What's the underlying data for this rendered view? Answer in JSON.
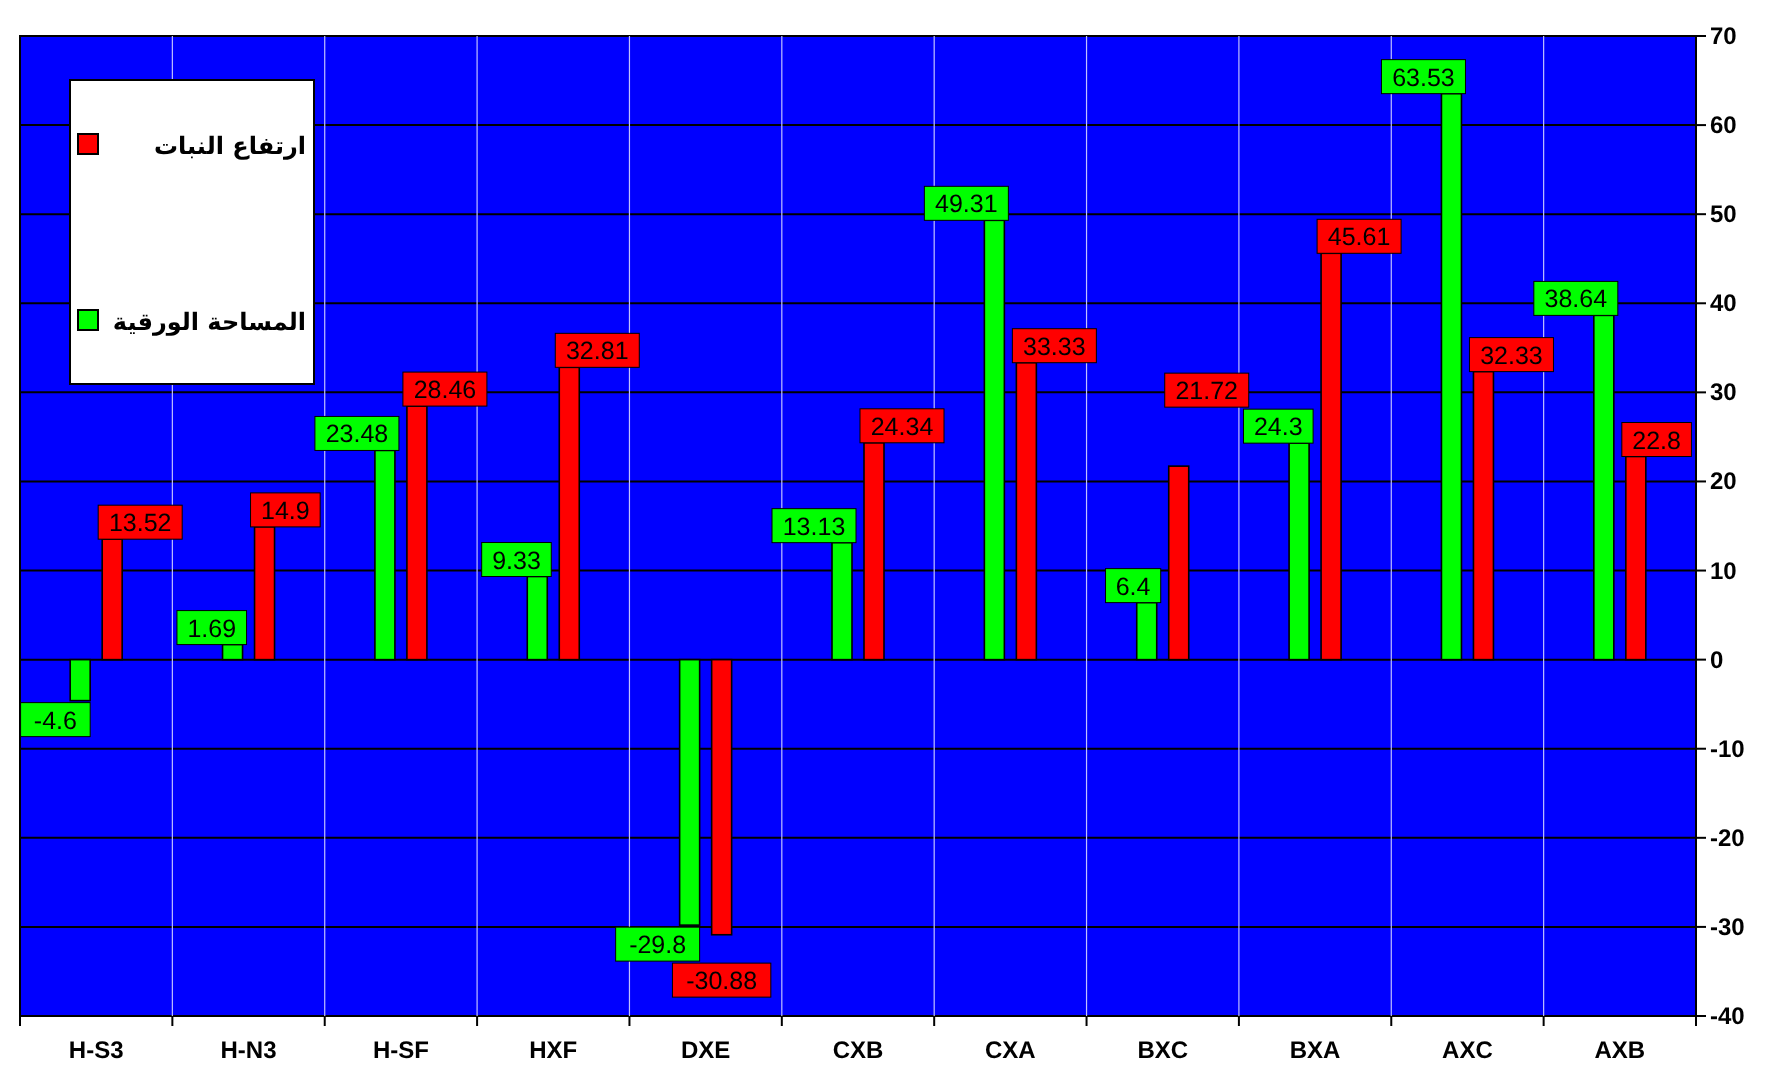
{
  "chart_data": {
    "type": "bar",
    "categories": [
      "H-S3",
      "H-N3",
      "H-SF",
      "HXF",
      "DXE",
      "CXB",
      "CXA",
      "BXC",
      "BXA",
      "AXC",
      "AXB"
    ],
    "series": [
      {
        "name": "المساحة الورقية",
        "color": "#00ff00",
        "values": [
          -4.6,
          1.69,
          23.48,
          9.33,
          -29.8,
          13.13,
          49.31,
          6.4,
          24.3,
          63.53,
          38.64
        ]
      },
      {
        "name": "ارتفاع النبات",
        "color": "#ff0000",
        "values": [
          13.52,
          14.9,
          28.46,
          32.81,
          -30.88,
          24.34,
          33.33,
          21.72,
          45.61,
          32.33,
          22.8
        ]
      }
    ],
    "ylim": [
      -40,
      70
    ],
    "yticks": [
      -40,
      -30,
      -20,
      -10,
      0,
      10,
      20,
      30,
      40,
      50,
      60,
      70
    ],
    "grid": "y",
    "legend": "top left",
    "data_labels": true
  }
}
